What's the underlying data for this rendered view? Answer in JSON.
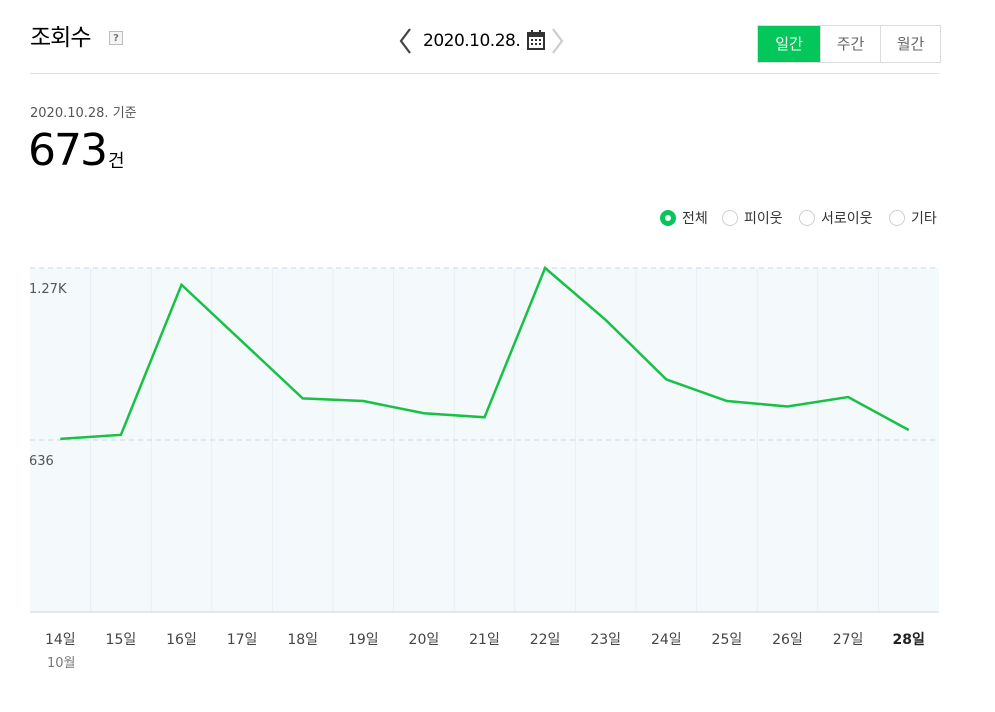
{
  "header": {
    "title": "조회수",
    "help_label": "?",
    "date": "2020.10.28."
  },
  "period_tabs": [
    {
      "label": "일간",
      "active": true
    },
    {
      "label": "주간",
      "active": false
    },
    {
      "label": "월간",
      "active": false
    }
  ],
  "summary": {
    "basis": "2020.10.28. 기준",
    "count": "673",
    "unit": "건"
  },
  "legend": [
    {
      "label": "전체",
      "checked": true
    },
    {
      "label": "피이웃",
      "checked": false
    },
    {
      "label": "서로이웃",
      "checked": false
    },
    {
      "label": "기타",
      "checked": false
    }
  ],
  "colors": {
    "accent": "#03c75a",
    "line": "#18c146",
    "plot_background": "#f4f9fc",
    "gridline": "#d9e4ec"
  },
  "chart_data": {
    "type": "line",
    "categories": [
      "14일",
      "15일",
      "16일",
      "17일",
      "18일",
      "19일",
      "20일",
      "21일",
      "22일",
      "23일",
      "24일",
      "25일",
      "26일",
      "27일",
      "28일"
    ],
    "month_label": "10월",
    "current_category": "28일",
    "series": [
      {
        "values": [
          640,
          655,
          1210,
          1000,
          790,
          780,
          735,
          720,
          1272,
          1080,
          860,
          780,
          760,
          795,
          673
        ]
      }
    ],
    "y_ticks": [
      {
        "value": 1272,
        "label": "1.27K"
      },
      {
        "value": 636,
        "label": "636"
      }
    ],
    "ylim": [
      0,
      1272
    ],
    "grid": true
  }
}
